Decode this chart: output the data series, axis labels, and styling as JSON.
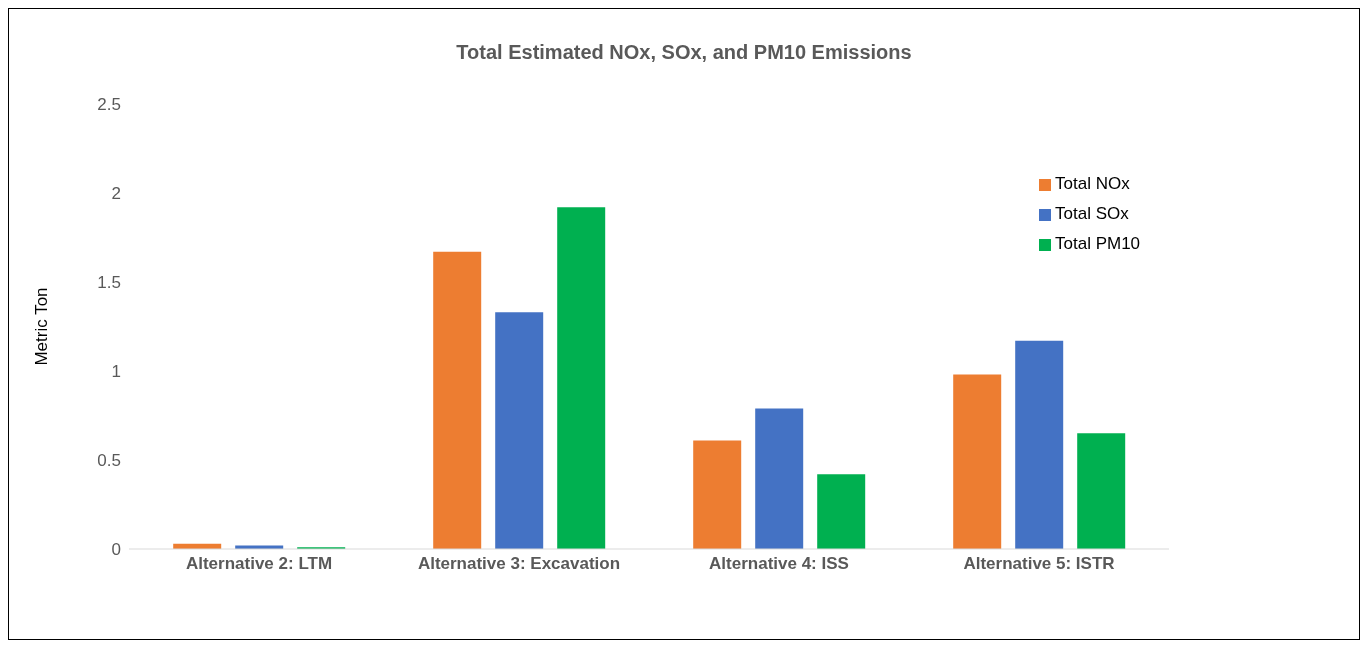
{
  "chart_data": {
    "type": "bar",
    "title": "Total Estimated NOx, SOx, and PM10 Emissions",
    "ylabel": "Metric Ton",
    "categories": [
      "Alternative 2: LTM",
      "Alternative 3: Excavation",
      "Alternative 4: ISS",
      "Alternative 5: ISTR"
    ],
    "series": [
      {
        "name": "Total NOx",
        "color": "#ed7d31",
        "values": [
          0.03,
          1.67,
          0.61,
          0.98
        ]
      },
      {
        "name": "Total SOx",
        "color": "#4472c4",
        "values": [
          0.02,
          1.33,
          0.79,
          1.17
        ]
      },
      {
        "name": "Total PM10",
        "color": "#00b050",
        "values": [
          0.01,
          1.92,
          0.42,
          0.65
        ]
      }
    ],
    "ylim": [
      0,
      2.5
    ],
    "yticks": [
      0,
      0.5,
      1,
      1.5,
      2,
      2.5
    ],
    "grid": false,
    "legend": "top right"
  }
}
